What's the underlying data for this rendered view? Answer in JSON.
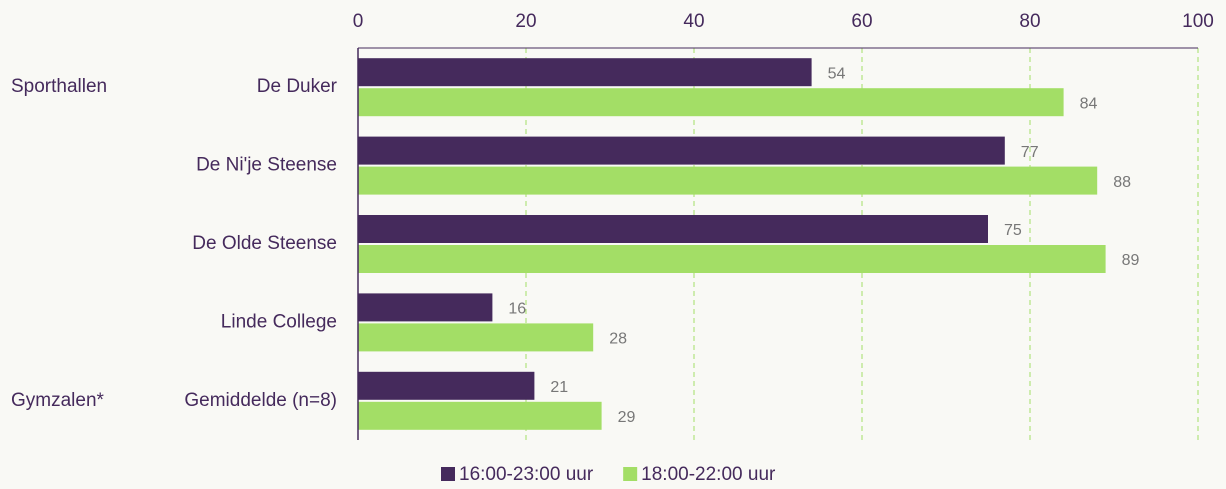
{
  "chart_data": {
    "type": "barh",
    "categories": [
      "De Duker",
      "De Ni'je Steense",
      "De Olde Steense",
      "Linde College",
      "Gemiddelde (n=8)"
    ],
    "group_labels": [
      "Sporthallen",
      null,
      null,
      null,
      "Gymzalen*"
    ],
    "series": [
      {
        "name": "16:00-23:00 uur",
        "color": "#452a5c",
        "values": [
          54,
          77,
          75,
          16,
          21
        ]
      },
      {
        "name": "18:00-22:00 uur",
        "color": "#a3de66",
        "values": [
          84,
          88,
          89,
          28,
          29
        ]
      }
    ],
    "xlim": [
      0,
      100
    ],
    "xticks": [
      0,
      20,
      40,
      60,
      80,
      100
    ],
    "grid": true,
    "legend": "bottom"
  }
}
